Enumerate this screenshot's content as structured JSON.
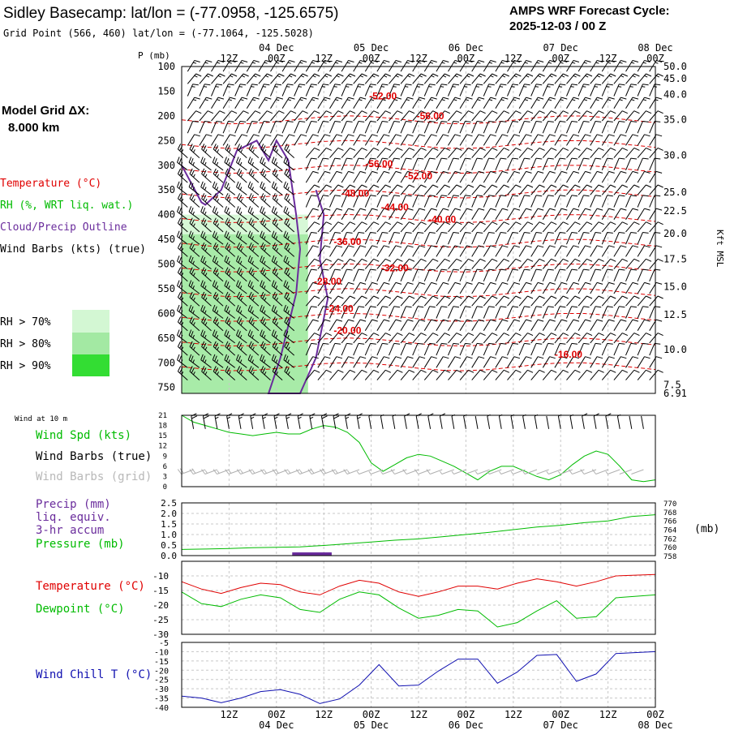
{
  "header": {
    "title": "Sidley Basecamp:  lat/lon = (-77.0958, -125.6575)",
    "grid_point": "Grid Point (566, 460) lat/lon = (-77.1064, -125.5028)",
    "cycle_label": "AMPS WRF Forecast Cycle:",
    "cycle_value": "2025-12-03 / 00  Z"
  },
  "colors": {
    "temperature": "#e00000",
    "rh": "#00bb00",
    "cloud": "#6a2c9c",
    "wind": "#000000",
    "wind_grid": "#b0b0b0",
    "precip": "#6a2c9c",
    "wind_chill": "#1010b0",
    "rh70": "#d3f7d3",
    "rh80": "#a3e9a3",
    "rh90": "#33dd33"
  },
  "time_axis": {
    "hours": [
      12,
      24,
      36,
      48,
      60,
      72,
      84,
      96,
      108,
      120
    ],
    "hour_labels": [
      "12Z",
      "00Z",
      "12Z",
      "00Z",
      "12Z",
      "00Z",
      "12Z",
      "00Z",
      "12Z",
      "00Z"
    ],
    "day_labels": [
      {
        "hour": 24,
        "label": "04 Dec"
      },
      {
        "hour": 48,
        "label": "05 Dec"
      },
      {
        "hour": 72,
        "label": "06 Dec"
      },
      {
        "hour": 96,
        "label": "07 Dec"
      },
      {
        "hour": 120,
        "label": "08 Dec"
      }
    ]
  },
  "left_legend": {
    "model_grid_label": "Model Grid ΔX:",
    "model_grid_value": "8.000 km",
    "temperature": "Temperature (°C)",
    "rh": "RH (%, WRT liq. wat.)",
    "cloud": "Cloud/Precip Outline",
    "wind": "Wind Barbs (kts) (true)",
    "rh70": "RH > 70%",
    "rh80": "RH > 80%",
    "rh90": "RH > 90%"
  },
  "chart_data": [
    {
      "type": "heatmap",
      "panel": "vertical cross-section",
      "y_label": "P (mb)",
      "y_right_label": "Kft MSL",
      "p_ticks": [
        100,
        150,
        200,
        250,
        300,
        350,
        400,
        450,
        500,
        550,
        600,
        650,
        700,
        750
      ],
      "kft_ticks": [
        {
          "p": 100,
          "label": "50.0"
        },
        {
          "p": 125,
          "label": "45.0"
        },
        {
          "p": 157,
          "label": "40.0"
        },
        {
          "p": 208,
          "label": "35.0"
        },
        {
          "p": 280,
          "label": "30.0"
        },
        {
          "p": 355,
          "label": "25.0"
        },
        {
          "p": 392,
          "label": "22.5"
        },
        {
          "p": 438,
          "label": "20.0"
        },
        {
          "p": 490,
          "label": "17.5"
        },
        {
          "p": 546,
          "label": "15.0"
        },
        {
          "p": 603,
          "label": "12.5"
        },
        {
          "p": 673,
          "label": "10.0"
        },
        {
          "p": 745,
          "label": "7.5"
        },
        {
          "p": 762,
          "label": "6.91"
        }
      ],
      "temperature_contour_labels": [
        {
          "hour": 51,
          "p": 160,
          "label": "-52.00"
        },
        {
          "hour": 63,
          "p": 200,
          "label": "-56.00"
        },
        {
          "hour": 50,
          "p": 297,
          "label": "-56.00"
        },
        {
          "hour": 60,
          "p": 322,
          "label": "-52.00"
        },
        {
          "hour": 44,
          "p": 357,
          "label": "-48.00"
        },
        {
          "hour": 54,
          "p": 385,
          "label": "-44.00"
        },
        {
          "hour": 66,
          "p": 410,
          "label": "-40.00"
        },
        {
          "hour": 42,
          "p": 455,
          "label": "-36.00"
        },
        {
          "hour": 54,
          "p": 508,
          "label": "-32.00"
        },
        {
          "hour": 37,
          "p": 535,
          "label": "-28.00"
        },
        {
          "hour": 40,
          "p": 590,
          "label": "-24.00"
        },
        {
          "hour": 42,
          "p": 635,
          "label": "-20.00"
        },
        {
          "hour": 98,
          "p": 683,
          "label": "-16.00"
        }
      ],
      "rh_shading": [
        {
          "level": 70,
          "hours": [
            0,
            32
          ],
          "p": [
            400,
            762
          ]
        },
        {
          "level": 80,
          "hours": [
            0,
            32
          ],
          "p": [
            440,
            762
          ]
        }
      ],
      "wind_barbs_kts": [
        {
          "hours": [
            0,
            30
          ],
          "p": [
            250,
            762
          ],
          "speed": 25
        },
        {
          "hours": [
            30,
            120
          ],
          "p": [
            350,
            762
          ],
          "speed": 10
        }
      ]
    },
    {
      "type": "line",
      "panel": "wind at 10 m",
      "title": "Wind at 10 m",
      "series_label": "Wind Spd (kts)",
      "barbs_true_label": "Wind Barbs (true)",
      "barbs_grid_label": "Wind Barbs (grid)",
      "ylim": [
        0,
        21
      ],
      "y_ticks": [
        0,
        3,
        6,
        9,
        12,
        15,
        18,
        21
      ],
      "x": [
        0,
        3,
        6,
        9,
        12,
        15,
        18,
        21,
        24,
        27,
        30,
        33,
        36,
        39,
        42,
        45,
        48,
        51,
        54,
        57,
        60,
        63,
        66,
        69,
        72,
        75,
        78,
        81,
        84,
        87,
        90,
        93,
        96,
        99,
        102,
        105,
        108,
        111,
        114,
        117,
        120
      ],
      "values": [
        21,
        19,
        18,
        17,
        16,
        15.5,
        15,
        15.5,
        16,
        15.5,
        15.5,
        17,
        18,
        17.5,
        16,
        13,
        7,
        4.5,
        6.5,
        8.5,
        9.5,
        9,
        7.5,
        6,
        4,
        2,
        4.5,
        6,
        6,
        4.5,
        3,
        2,
        3.5,
        6.5,
        9,
        10.5,
        9.5,
        6,
        2,
        1.5,
        2
      ]
    },
    {
      "type": "line",
      "panel": "precip and pressure",
      "precip_label": "Precip (mm)",
      "precip_sub1": "liq. equiv.",
      "precip_sub2": "3-hr accum",
      "pressure_label": "Pressure (mb)",
      "right_unit": "(mb)",
      "precip_ylim": [
        0,
        2.5
      ],
      "precip_ticks": [
        "0.0",
        "0.5",
        "1.0",
        "1.5",
        "2.0",
        "2.5"
      ],
      "pressure_ylim": [
        758,
        770
      ],
      "pressure_ticks": [
        "758",
        "760",
        "762",
        "764",
        "766",
        "768",
        "770"
      ],
      "x": [
        0,
        6,
        12,
        18,
        24,
        30,
        36,
        42,
        48,
        54,
        60,
        66,
        72,
        78,
        84,
        90,
        96,
        102,
        108,
        114,
        120
      ],
      "pressure": [
        759.4,
        759.5,
        759.6,
        759.8,
        759.9,
        760.0,
        760.3,
        760.7,
        761.1,
        761.5,
        761.8,
        762.3,
        762.8,
        763.3,
        763.9,
        764.5,
        764.9,
        765.5,
        765.9,
        766.9,
        767.3
      ],
      "precip": [
        0,
        0,
        0,
        0,
        0,
        0.05,
        0.1,
        0.05,
        0,
        0,
        0,
        0,
        0,
        0,
        0,
        0,
        0,
        0,
        0,
        0,
        0
      ]
    },
    {
      "type": "line",
      "panel": "temperature and dewpoint",
      "series": [
        {
          "name": "Temperature (°C)",
          "values": [
            -12,
            -14.5,
            -16,
            -14,
            -12.5,
            -13,
            -15.5,
            -16.5,
            -13.5,
            -11.5,
            -12.5,
            -15.5,
            -17,
            -15.5,
            -13.5,
            -13.5,
            -14.5,
            -12.5,
            -11,
            -12,
            -13.5,
            -12,
            -10,
            -9.5
          ]
        },
        {
          "name": "Dewpoint (°C)",
          "values": [
            -15.5,
            -19.5,
            -20.5,
            -18,
            -16.5,
            -17.5,
            -21.5,
            -22.5,
            -18,
            -15.5,
            -16.5,
            -21,
            -24.5,
            -23.5,
            -21.5,
            -22,
            -27.5,
            -26,
            -22,
            -18.5,
            -24.5,
            -24,
            -17.5,
            -16.5
          ]
        }
      ],
      "x": [
        0,
        5,
        10,
        15,
        20,
        25,
        30,
        35,
        40,
        45,
        50,
        55,
        60,
        65,
        70,
        75,
        80,
        85,
        90,
        95,
        100,
        105,
        110,
        120
      ],
      "ylim": [
        -30,
        -5
      ],
      "y_ticks": [
        -30,
        -25,
        -20,
        -15,
        -10
      ]
    },
    {
      "type": "line",
      "panel": "wind chill",
      "series": [
        {
          "name": "Wind Chill T (°C)",
          "values": [
            -34,
            -35,
            -37.5,
            -35,
            -31.5,
            -30.5,
            -33,
            -38,
            -35.5,
            -28,
            -17,
            -28.5,
            -28,
            -20.5,
            -14,
            -14,
            -27,
            -21,
            -12,
            -11.5,
            -26,
            -22,
            -11,
            -10
          ]
        }
      ],
      "x": [
        0,
        5,
        10,
        15,
        20,
        25,
        30,
        35,
        40,
        45,
        50,
        55,
        60,
        65,
        70,
        75,
        80,
        85,
        90,
        95,
        100,
        105,
        110,
        120
      ],
      "ylim": [
        -40,
        -5
      ],
      "y_ticks": [
        -40,
        -35,
        -30,
        -25,
        -20,
        -15,
        -10,
        -5
      ]
    }
  ]
}
